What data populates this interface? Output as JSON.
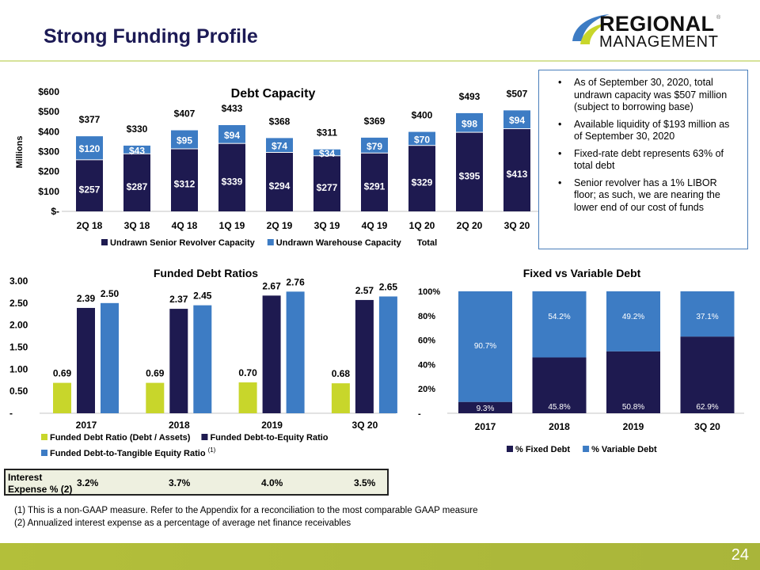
{
  "title": "Strong Funding Profile",
  "logo": {
    "line1": "REGIONAL",
    "line2": "MANAGEMENT",
    "mark": "®"
  },
  "bullets": [
    "As of September 30, 2020, total undrawn capacity was $507 million (subject to borrowing base)",
    "Available liquidity of $193 million as of September 30, 2020",
    "Fixed-rate debt represents 63% of total debt",
    "Senior revolver has a 1% LIBOR floor; as such, we are nearing the lower end of our cost of funds"
  ],
  "colors": {
    "navy": "#1e1a50",
    "blue": "#3d7cc4",
    "green": "#c8d62b",
    "band": "#b0bc3a"
  },
  "chart_data": [
    {
      "type": "bar",
      "stacked": true,
      "title": "Debt Capacity",
      "ylabel": "Millions",
      "ylim": [
        0,
        600
      ],
      "yticks": [
        "$-",
        "$100",
        "$200",
        "$300",
        "$400",
        "$500",
        "$600"
      ],
      "categories": [
        "2Q 18",
        "3Q 18",
        "4Q 18",
        "1Q 19",
        "2Q 19",
        "3Q 19",
        "4Q 19",
        "1Q 20",
        "2Q 20",
        "3Q 20"
      ],
      "series": [
        {
          "name": "Undrawn Senior Revolver Capacity",
          "values": [
            257,
            287,
            312,
            339,
            294,
            277,
            291,
            329,
            395,
            413
          ]
        },
        {
          "name": "Undrawn Warehouse Capacity",
          "values": [
            120,
            43,
            95,
            94,
            74,
            34,
            79,
            70,
            98,
            94
          ]
        }
      ],
      "totals_name": "Total",
      "totals": [
        377,
        330,
        407,
        433,
        368,
        311,
        369,
        400,
        493,
        507
      ],
      "legend": "bottom"
    },
    {
      "type": "bar",
      "title": "Funded Debt Ratios",
      "ylim": [
        0,
        3
      ],
      "yticks": [
        "-",
        "0.50",
        "1.00",
        "1.50",
        "2.00",
        "2.50",
        "3.00"
      ],
      "categories": [
        "2017",
        "2018",
        "2019",
        "3Q 20"
      ],
      "series": [
        {
          "name": "Funded Debt Ratio (Debt / Assets)",
          "values": [
            0.69,
            0.69,
            0.7,
            0.68
          ]
        },
        {
          "name": "Funded Debt-to-Equity Ratio",
          "values": [
            2.39,
            2.37,
            2.67,
            2.57
          ]
        },
        {
          "name": "Funded Debt-to-Tangible Equity Ratio",
          "note": "(1)",
          "values": [
            2.5,
            2.45,
            2.76,
            2.65
          ]
        }
      ],
      "legend": "bottom"
    },
    {
      "type": "bar",
      "stacked": true,
      "title": "Fixed vs Variable Debt",
      "ylim": [
        0,
        100
      ],
      "yticks": [
        "-",
        "20%",
        "40%",
        "60%",
        "80%",
        "100%"
      ],
      "categories": [
        "2017",
        "2018",
        "2019",
        "3Q 20"
      ],
      "series": [
        {
          "name": "% Fixed Debt",
          "values": [
            9.3,
            45.8,
            50.8,
            62.9
          ]
        },
        {
          "name": "% Variable Debt",
          "values": [
            90.7,
            54.2,
            49.2,
            37.1
          ]
        }
      ],
      "legend": "bottom"
    }
  ],
  "interest": {
    "label1": "Interest",
    "label2": "Expense % (2)",
    "values": [
      "3.2%",
      "3.7%",
      "4.0%",
      "3.5%"
    ]
  },
  "footnotes": [
    "(1) This is a non-GAAP measure. Refer to the Appendix for a reconciliation to the most comparable GAAP measure",
    "(2) Annualized interest expense as a percentage of average net finance receivables"
  ],
  "page": "24"
}
